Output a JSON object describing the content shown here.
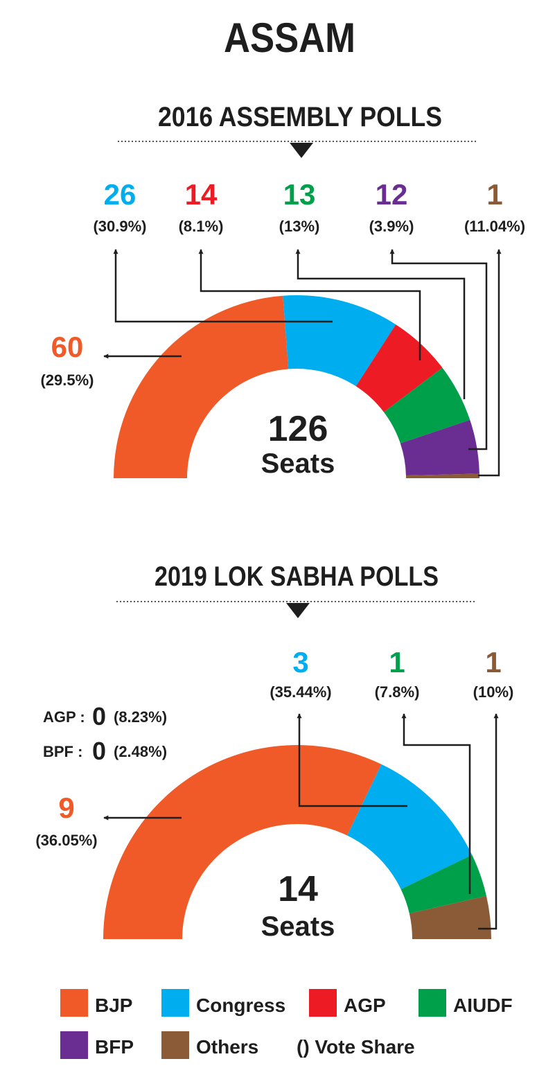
{
  "title": "ASSAM",
  "colors": {
    "BJP": "#f05a28",
    "Congress": "#00aeef",
    "AGP": "#ed1c24",
    "AIUDF": "#00a04b",
    "BFP": "#6a2d91",
    "Others": "#8b5a36",
    "text": "#1e1e1e"
  },
  "chart_data": [
    {
      "type": "pie",
      "title": "2016 ASSEMBLY POLLS",
      "total_value": "126",
      "total_unit": "Seats",
      "series": [
        {
          "name": "BJP",
          "seats": 60,
          "seats_label": "60",
          "vote_share": "(29.5%)"
        },
        {
          "name": "Congress",
          "seats": 26,
          "seats_label": "26",
          "vote_share": "(30.9%)"
        },
        {
          "name": "AGP",
          "seats": 14,
          "seats_label": "14",
          "vote_share": "(8.1%)"
        },
        {
          "name": "AIUDF",
          "seats": 13,
          "seats_label": "13",
          "vote_share": "(13%)"
        },
        {
          "name": "BFP",
          "seats": 12,
          "seats_label": "12",
          "vote_share": "(3.9%)"
        },
        {
          "name": "Others",
          "seats": 1,
          "seats_label": "1",
          "vote_share": "(11.04%)"
        }
      ]
    },
    {
      "type": "pie",
      "title": "2019 LOK SABHA POLLS",
      "total_value": "14",
      "total_unit": "Seats",
      "series": [
        {
          "name": "BJP",
          "seats": 9,
          "seats_label": "9",
          "vote_share": "(36.05%)"
        },
        {
          "name": "Congress",
          "seats": 3,
          "seats_label": "3",
          "vote_share": "(35.44%)"
        },
        {
          "name": "AIUDF",
          "seats": 1,
          "seats_label": "1",
          "vote_share": "(7.8%)"
        },
        {
          "name": "Others",
          "seats": 1,
          "seats_label": "1",
          "vote_share": "(10%)"
        }
      ],
      "zero_seat_notes": [
        {
          "party": "AGP :",
          "seats": "0",
          "vote_share": "(8.23%)"
        },
        {
          "party": "BPF :",
          "seats": "0",
          "vote_share": "(2.48%)"
        }
      ]
    }
  ],
  "legend": {
    "items": [
      {
        "name": "BJP"
      },
      {
        "name": "Congress"
      },
      {
        "name": "AGP"
      },
      {
        "name": "AIUDF"
      },
      {
        "name": "BFP"
      },
      {
        "name": "Others"
      }
    ],
    "note": "() Vote Share"
  }
}
